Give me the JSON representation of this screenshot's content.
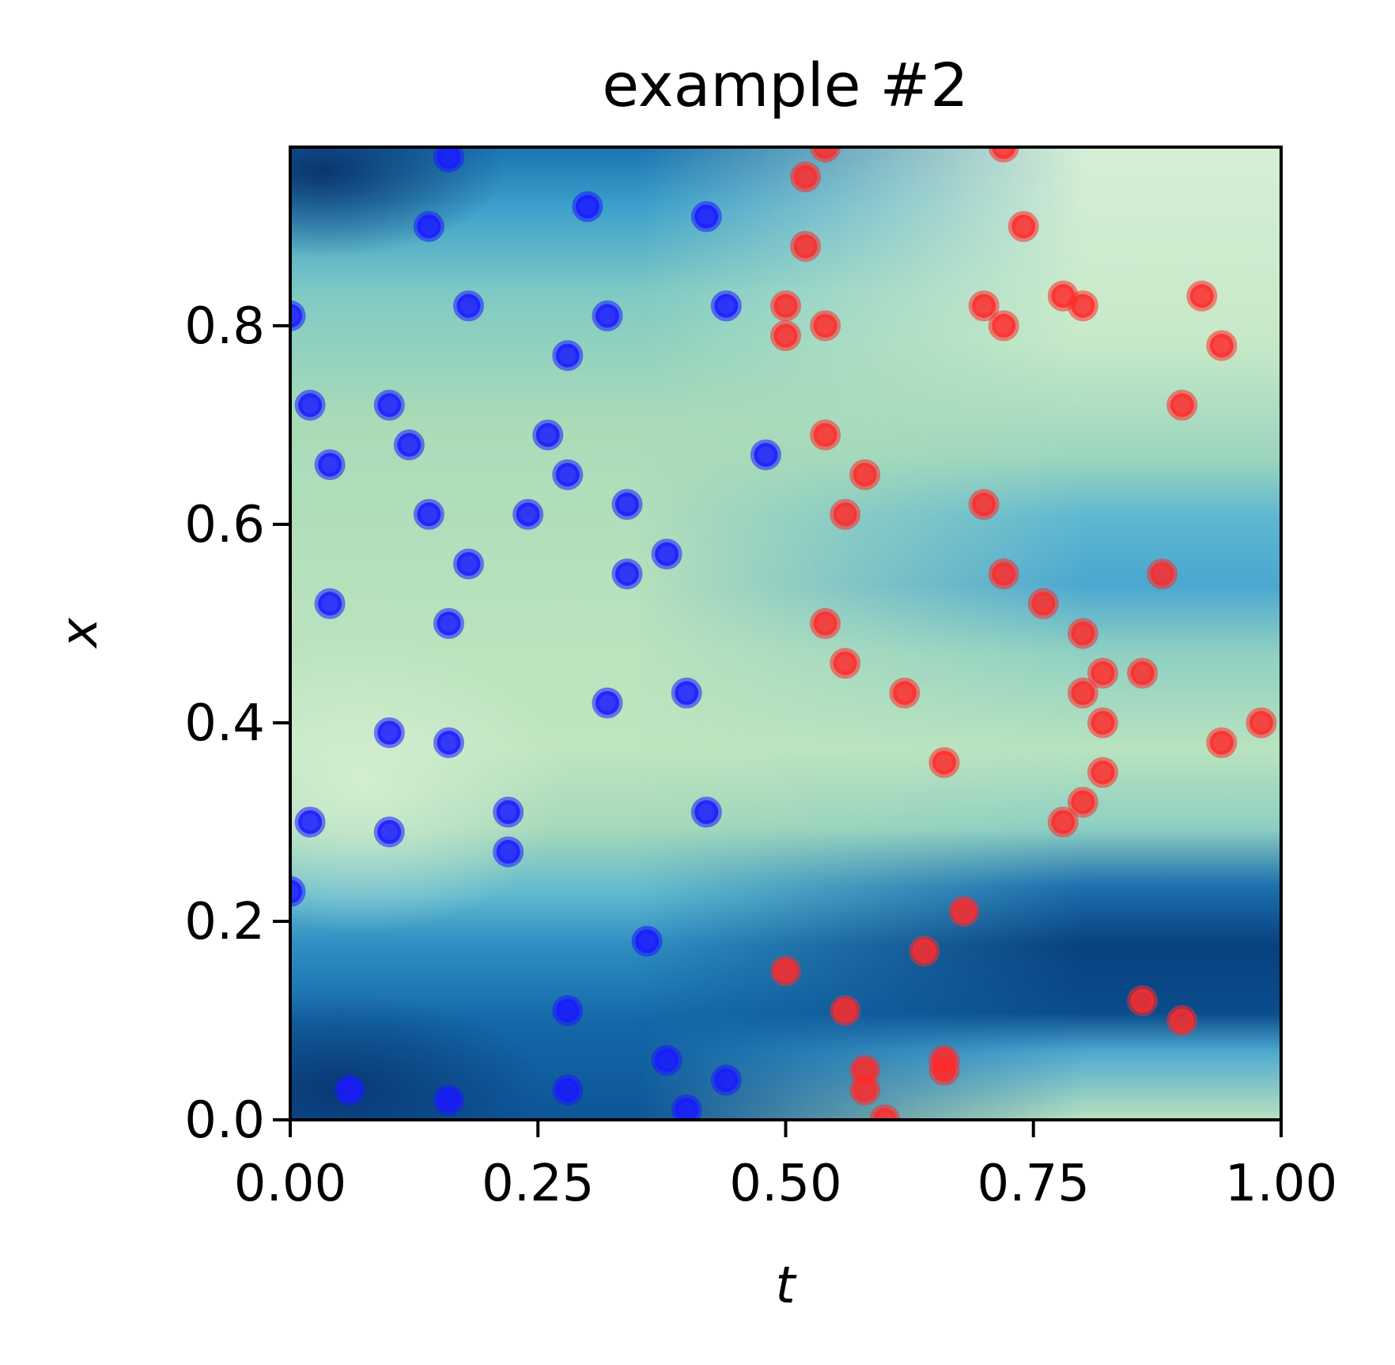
{
  "chart_data": {
    "type": "scatter",
    "title": "example #2",
    "xlabel": "t",
    "ylabel": "x",
    "xlim": [
      0.0,
      1.0
    ],
    "ylim": [
      0.0,
      0.98
    ],
    "xticks": [
      "0.00",
      "0.25",
      "0.50",
      "0.75",
      "1.00"
    ],
    "yticks": [
      "0.0",
      "0.2",
      "0.4",
      "0.6",
      "0.8"
    ],
    "background": "heatmap (GnBu colormap)",
    "grid": false,
    "colors": {
      "blue_points": "#1a1aff",
      "red_points": "#ff2a2a"
    },
    "series": [
      {
        "color": "blue",
        "points": [
          [
            0.0,
            0.81
          ],
          [
            0.02,
            0.72
          ],
          [
            0.04,
            0.66
          ],
          [
            0.04,
            0.52
          ],
          [
            0.02,
            0.3
          ],
          [
            0.0,
            0.23
          ],
          [
            0.06,
            0.03
          ],
          [
            0.1,
            0.72
          ],
          [
            0.12,
            0.68
          ],
          [
            0.1,
            0.39
          ],
          [
            0.1,
            0.29
          ],
          [
            0.14,
            0.9
          ],
          [
            0.14,
            0.61
          ],
          [
            0.16,
            0.97
          ],
          [
            0.16,
            0.5
          ],
          [
            0.16,
            0.38
          ],
          [
            0.16,
            0.02
          ],
          [
            0.18,
            0.82
          ],
          [
            0.18,
            0.56
          ],
          [
            0.22,
            0.31
          ],
          [
            0.22,
            0.27
          ],
          [
            0.24,
            0.61
          ],
          [
            0.26,
            0.69
          ],
          [
            0.28,
            0.77
          ],
          [
            0.28,
            0.65
          ],
          [
            0.28,
            0.11
          ],
          [
            0.28,
            0.03
          ],
          [
            0.3,
            0.92
          ],
          [
            0.32,
            0.81
          ],
          [
            0.32,
            0.42
          ],
          [
            0.34,
            0.62
          ],
          [
            0.34,
            0.55
          ],
          [
            0.36,
            0.18
          ],
          [
            0.38,
            0.57
          ],
          [
            0.38,
            0.06
          ],
          [
            0.4,
            0.43
          ],
          [
            0.4,
            0.01
          ],
          [
            0.42,
            0.91
          ],
          [
            0.42,
            0.31
          ],
          [
            0.44,
            0.82
          ],
          [
            0.44,
            0.04
          ],
          [
            0.48,
            0.67
          ]
        ]
      },
      {
        "color": "red",
        "points": [
          [
            0.5,
            0.82
          ],
          [
            0.5,
            0.79
          ],
          [
            0.5,
            0.15
          ],
          [
            0.52,
            0.95
          ],
          [
            0.52,
            0.88
          ],
          [
            0.54,
            0.98
          ],
          [
            0.54,
            0.8
          ],
          [
            0.54,
            0.69
          ],
          [
            0.54,
            0.5
          ],
          [
            0.56,
            0.61
          ],
          [
            0.56,
            0.46
          ],
          [
            0.56,
            0.11
          ],
          [
            0.58,
            0.65
          ],
          [
            0.58,
            0.05
          ],
          [
            0.58,
            0.03
          ],
          [
            0.6,
            0.0
          ],
          [
            0.62,
            0.43
          ],
          [
            0.64,
            0.17
          ],
          [
            0.66,
            0.36
          ],
          [
            0.66,
            0.06
          ],
          [
            0.66,
            0.05
          ],
          [
            0.68,
            0.21
          ],
          [
            0.7,
            0.82
          ],
          [
            0.7,
            0.62
          ],
          [
            0.72,
            0.98
          ],
          [
            0.72,
            0.8
          ],
          [
            0.72,
            0.55
          ],
          [
            0.74,
            0.9
          ],
          [
            0.76,
            0.52
          ],
          [
            0.78,
            0.83
          ],
          [
            0.78,
            0.3
          ],
          [
            0.8,
            0.82
          ],
          [
            0.8,
            0.49
          ],
          [
            0.8,
            0.43
          ],
          [
            0.8,
            0.32
          ],
          [
            0.82,
            0.45
          ],
          [
            0.82,
            0.4
          ],
          [
            0.82,
            0.35
          ],
          [
            0.86,
            0.45
          ],
          [
            0.86,
            0.12
          ],
          [
            0.88,
            0.55
          ],
          [
            0.9,
            0.72
          ],
          [
            0.9,
            0.1
          ],
          [
            0.92,
            0.83
          ],
          [
            0.94,
            0.78
          ],
          [
            0.94,
            0.38
          ],
          [
            0.98,
            0.4
          ]
        ]
      }
    ]
  }
}
